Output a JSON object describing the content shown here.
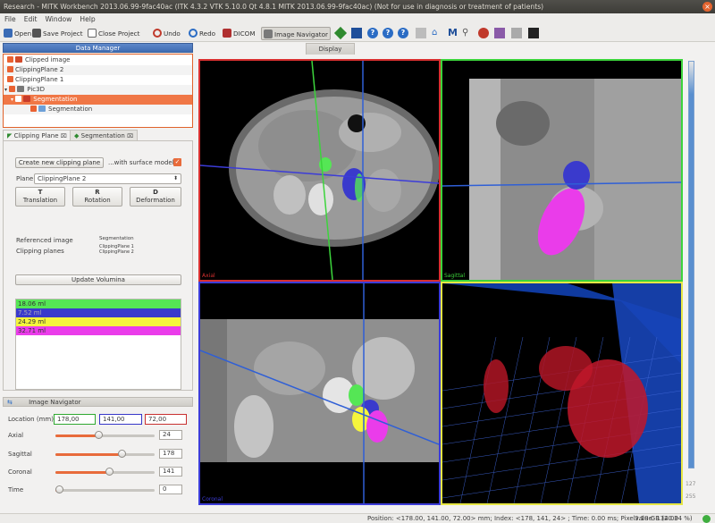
{
  "window": {
    "title": "Research - MITK Workbench 2013.06.99-9fac40ac (ITK 4.3.2  VTK 5.10.0 Qt 4.8.1 MITK 2013.06.99-9fac40ac) (Not for use in diagnosis or treatment of patients)"
  },
  "menu": [
    "File",
    "Edit",
    "Window",
    "Help"
  ],
  "toolbar": {
    "open": "Open",
    "save": "Save Project",
    "close": "Close Project",
    "undo": "Undo",
    "redo": "Redo",
    "dicom": "DICOM",
    "navigator": "Image Navigator"
  },
  "data_manager": {
    "title": "Data Manager",
    "items": [
      {
        "label": "Clipped image",
        "level": 0
      },
      {
        "label": "ClippingPlane 2",
        "level": 0
      },
      {
        "label": "ClippingPlane 1",
        "level": 0
      },
      {
        "label": "Pic3D",
        "level": 0
      },
      {
        "label": "Segmentation",
        "level": 1
      },
      {
        "label": "Segmentation",
        "level": 2
      }
    ]
  },
  "clipping_tabs": [
    "Clipping Plane",
    "Segmentation"
  ],
  "clipping": {
    "create_button": "Create new clipping plane",
    "surface_model": "...with surface model",
    "plane_label": "Plane",
    "plane_value": "ClippingPlane 2",
    "modes": [
      {
        "key": "T",
        "label": "Translation"
      },
      {
        "key": "R",
        "label": "Rotation"
      },
      {
        "key": "D",
        "label": "Deformation"
      }
    ],
    "ref_label": "Referenced image",
    "ref_value": "Segmentation",
    "planes_label": "Clipping planes",
    "planes_values": [
      "ClippingPlane 1",
      "ClippingPlane 2"
    ],
    "update_button": "Update Volumina",
    "volumes": [
      {
        "value": "18.06 ml",
        "color": "#55e655"
      },
      {
        "value": "7.52 ml",
        "color": "#3a3acc"
      },
      {
        "value": "24.29 ml",
        "color": "#f5f53c"
      },
      {
        "value": "32.71 ml",
        "color": "#ea3cea"
      }
    ]
  },
  "navigator": {
    "title": "Image Navigator",
    "location_label": "Location (mm)",
    "location": [
      "178,00",
      "141,00",
      "72,00"
    ],
    "sliders": [
      {
        "label": "Axial",
        "value": "24",
        "fraction": 0.43
      },
      {
        "label": "Sagittal",
        "value": "178",
        "fraction": 0.69
      },
      {
        "label": "Coronal",
        "value": "141",
        "fraction": 0.55
      },
      {
        "label": "Time",
        "value": "0",
        "fraction": 0.0
      }
    ]
  },
  "display": {
    "title": "Display",
    "views": [
      {
        "label": "Axial",
        "color": "#d83030"
      },
      {
        "label": "Sagittal",
        "color": "#3cd43c"
      },
      {
        "label": "Coronal",
        "color": "#3c3cd8"
      },
      {
        "label": "3D",
        "color": "#e6e644"
      }
    ],
    "level_top": "127",
    "level_bottom": "255"
  },
  "status": {
    "text": "Position: <178.00, 141.00, 72.00> mm; Index: <178, 141, 24> ; Time: 0.00 ms; Pixelvalue: 134.00",
    "memory": "3.18 GB (20.34 %)"
  }
}
